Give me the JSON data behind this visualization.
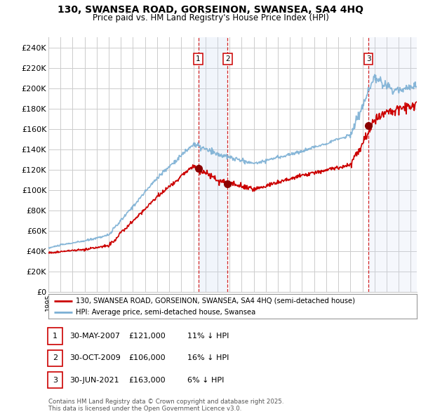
{
  "title": "130, SWANSEA ROAD, GORSEINON, SWANSEA, SA4 4HQ",
  "subtitle": "Price paid vs. HM Land Registry's House Price Index (HPI)",
  "xlim_start": 1995.0,
  "xlim_end": 2025.5,
  "ylim": [
    0,
    250000
  ],
  "yticks": [
    0,
    20000,
    40000,
    60000,
    80000,
    100000,
    120000,
    140000,
    160000,
    180000,
    200000,
    220000,
    240000
  ],
  "ytick_labels": [
    "£0",
    "£20K",
    "£40K",
    "£60K",
    "£80K",
    "£100K",
    "£120K",
    "£140K",
    "£160K",
    "£180K",
    "£200K",
    "£220K",
    "£240K"
  ],
  "sale_dates": [
    2007.41,
    2009.83,
    2021.49
  ],
  "sale_prices": [
    121000,
    106000,
    163000
  ],
  "sale_labels": [
    "1",
    "2",
    "3"
  ],
  "sale_info": [
    {
      "num": "1",
      "date": "30-MAY-2007",
      "price": "£121,000",
      "hpi": "11% ↓ HPI"
    },
    {
      "num": "2",
      "date": "30-OCT-2009",
      "price": "£106,000",
      "hpi": "16% ↓ HPI"
    },
    {
      "num": "3",
      "date": "30-JUN-2021",
      "price": "£163,000",
      "hpi": "6% ↓ HPI"
    }
  ],
  "legend_line1": "130, SWANSEA ROAD, GORSEINON, SWANSEA, SA4 4HQ (semi-detached house)",
  "legend_line2": "HPI: Average price, semi-detached house, Swansea",
  "footer": "Contains HM Land Registry data © Crown copyright and database right 2025.\nThis data is licensed under the Open Government Licence v3.0.",
  "hpi_color": "#7bafd4",
  "price_color": "#cc0000",
  "sale_marker_color": "#8b0000",
  "vline_color": "#cc0000",
  "shade_color": "#c8d8f0",
  "background_color": "#ffffff",
  "grid_color": "#cccccc"
}
